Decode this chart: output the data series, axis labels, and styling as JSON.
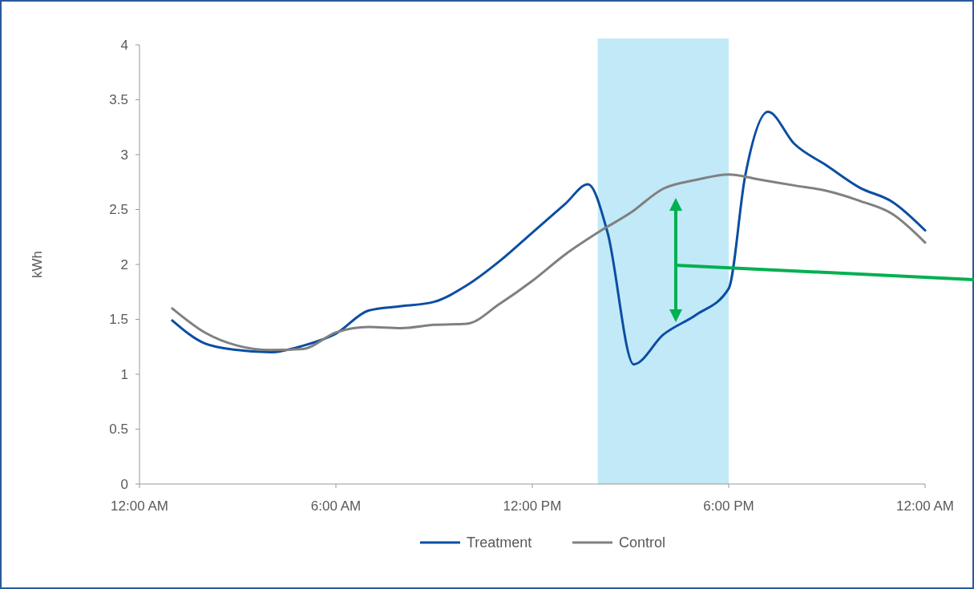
{
  "chart_data": {
    "type": "line",
    "ylabel": "kWh",
    "xlim": [
      0,
      24
    ],
    "ylim": [
      0,
      4
    ],
    "xticks": [
      {
        "value": 0,
        "label": "12:00 AM"
      },
      {
        "value": 6,
        "label": "6:00 AM"
      },
      {
        "value": 12,
        "label": "12:00 PM"
      },
      {
        "value": 18,
        "label": "6:00 PM"
      },
      {
        "value": 24,
        "label": "12:00 AM"
      }
    ],
    "yticks": [
      0,
      {
        "value": 0.5,
        "label": "0.5"
      },
      1,
      {
        "value": 1.5,
        "label": "1.5"
      },
      2,
      {
        "value": 2.5,
        "label": "2.5"
      },
      3,
      {
        "value": 3.5,
        "label": "3.5"
      },
      4
    ],
    "grid": false,
    "legend": "bottom",
    "line_style": "solid",
    "bands": [
      {
        "axis": "x",
        "from": 14,
        "to": 18,
        "color": "#c1e9f8"
      }
    ],
    "series": [
      {
        "name": "Treatment",
        "color": "#0b4ea2",
        "x": [
          1,
          2,
          3,
          4,
          5,
          6,
          7,
          8,
          9,
          10,
          11,
          12,
          13,
          13.7,
          14.3,
          15.1,
          16,
          17,
          18,
          18.5,
          19.2,
          20,
          21,
          22,
          23,
          24
        ],
        "values": [
          1.49,
          1.28,
          1.22,
          1.2,
          1.26,
          1.37,
          1.58,
          1.62,
          1.66,
          1.81,
          2.03,
          2.29,
          2.55,
          2.73,
          2.29,
          1.09,
          1.36,
          1.54,
          1.78,
          2.8,
          3.39,
          3.1,
          2.9,
          2.7,
          2.57,
          2.31
        ]
      },
      {
        "name": "Control",
        "color": "#808080",
        "x": [
          1,
          2,
          3,
          4,
          5,
          6,
          7,
          8,
          9,
          10,
          11,
          12,
          13,
          14,
          15,
          16,
          17,
          18,
          19,
          20,
          21,
          22,
          23,
          24
        ],
        "values": [
          1.6,
          1.38,
          1.26,
          1.22,
          1.23,
          1.38,
          1.43,
          1.42,
          1.45,
          1.46,
          1.64,
          1.85,
          2.09,
          2.29,
          2.47,
          2.69,
          2.77,
          2.82,
          2.77,
          2.72,
          2.67,
          2.58,
          2.46,
          2.2
        ]
      }
    ]
  }
}
